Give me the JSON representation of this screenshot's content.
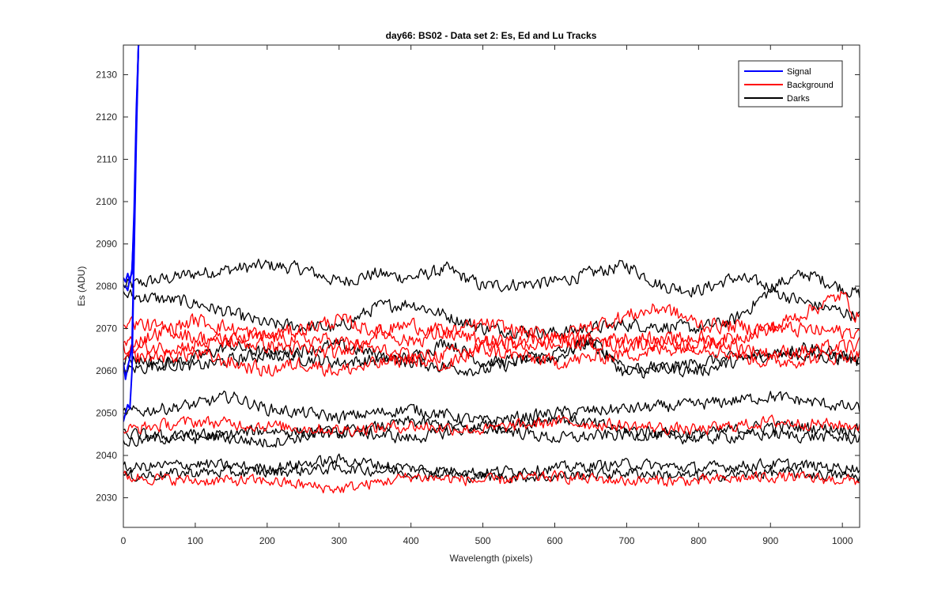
{
  "chart_data": {
    "type": "line",
    "title": "day66: BS02 - Data set 2: Es, Ed and Lu Tracks",
    "xlabel": "Wavelength (pixels)",
    "ylabel": "Es (ADU)",
    "xlim": [
      0,
      1024
    ],
    "ylim": [
      2023,
      2137
    ],
    "x_ticks": [
      0,
      100,
      200,
      300,
      400,
      500,
      600,
      700,
      800,
      900,
      1000
    ],
    "y_ticks": [
      2030,
      2040,
      2050,
      2060,
      2070,
      2080,
      2090,
      2100,
      2110,
      2120,
      2130
    ],
    "grid": false,
    "legend_position": "top-right",
    "legend": [
      {
        "label": "Signal",
        "color": "#0000ff"
      },
      {
        "label": "Background",
        "color": "#ff0000"
      },
      {
        "label": "Darks",
        "color": "#000000"
      }
    ],
    "series": [
      {
        "group": "Signal",
        "color": "#0000ff",
        "x": [
          0,
          3,
          6,
          9,
          12,
          15,
          18,
          21
        ],
        "y": [
          2082,
          2081,
          2083,
          2081,
          2084,
          2095,
          2120,
          2137
        ]
      },
      {
        "group": "Signal",
        "color": "#0000ff",
        "x": [
          0,
          3,
          6,
          9,
          12,
          15,
          18,
          21
        ],
        "y": [
          2062,
          2058,
          2061,
          2063,
          2066,
          2090,
          2118,
          2137
        ]
      },
      {
        "group": "Signal",
        "color": "#0000ff",
        "x": [
          0,
          3,
          6,
          9,
          12,
          15,
          18,
          21
        ],
        "y": [
          2048,
          2050,
          2052,
          2051,
          2060,
          2088,
          2115,
          2137
        ]
      },
      {
        "group": "Signal",
        "color": "#0000ff",
        "x": [
          0,
          3,
          6,
          9,
          12,
          15,
          18,
          21
        ],
        "y": [
          2080,
          2080,
          2079,
          2082,
          2083,
          2098,
          2122,
          2137
        ]
      },
      {
        "group": "Darks",
        "color": "#000000",
        "amp": 1.4,
        "x": [
          0,
          100,
          200,
          250,
          300,
          350,
          400,
          450,
          500,
          600,
          700,
          750,
          800,
          850,
          900,
          950,
          1024
        ],
        "y": [
          2080,
          2083,
          2085,
          2084,
          2081,
          2083,
          2082,
          2084,
          2080,
          2081,
          2085,
          2080,
          2079,
          2082,
          2080,
          2083,
          2078
        ]
      },
      {
        "group": "Darks",
        "color": "#000000",
        "amp": 1.4,
        "x": [
          0,
          100,
          200,
          300,
          350,
          400,
          450,
          500,
          600,
          700,
          800,
          850,
          900,
          950,
          1024
        ],
        "y": [
          2078,
          2076,
          2071,
          2070,
          2075,
          2076,
          2073,
          2070,
          2069,
          2071,
          2070,
          2072,
          2079,
          2076,
          2073
        ]
      },
      {
        "group": "Darks",
        "color": "#000000",
        "amp": 1.4,
        "x": [
          0,
          100,
          150,
          200,
          300,
          400,
          450,
          500,
          600,
          650,
          700,
          800,
          900,
          1024
        ],
        "y": [
          2060,
          2063,
          2066,
          2064,
          2062,
          2063,
          2067,
          2062,
          2063,
          2067,
          2059,
          2062,
          2064,
          2063
        ]
      },
      {
        "group": "Darks",
        "color": "#000000",
        "amp": 1.4,
        "x": [
          0,
          100,
          200,
          300,
          400,
          500,
          600,
          650,
          700,
          800,
          900,
          950,
          1024
        ],
        "y": [
          2063,
          2061,
          2064,
          2066,
          2062,
          2060,
          2064,
          2067,
          2061,
          2060,
          2064,
          2066,
          2062
        ]
      },
      {
        "group": "Darks",
        "color": "#000000",
        "amp": 1.3,
        "x": [
          0,
          100,
          150,
          200,
          300,
          400,
          500,
          600,
          700,
          800,
          900,
          1024
        ],
        "y": [
          2050,
          2052,
          2054,
          2051,
          2049,
          2051,
          2048,
          2050,
          2051,
          2052,
          2054,
          2051
        ]
      },
      {
        "group": "Darks",
        "color": "#000000",
        "amp": 1.3,
        "x": [
          0,
          100,
          200,
          300,
          400,
          500,
          600,
          700,
          800,
          900,
          1024
        ],
        "y": [
          2045,
          2044,
          2046,
          2045,
          2048,
          2046,
          2049,
          2046,
          2045,
          2047,
          2046
        ]
      },
      {
        "group": "Darks",
        "color": "#000000",
        "amp": 1.3,
        "x": [
          0,
          100,
          200,
          300,
          400,
          500,
          600,
          700,
          800,
          900,
          1024
        ],
        "y": [
          2043,
          2045,
          2043,
          2046,
          2044,
          2047,
          2044,
          2045,
          2044,
          2045,
          2044
        ]
      },
      {
        "group": "Darks",
        "color": "#000000",
        "amp": 1.2,
        "x": [
          0,
          100,
          200,
          300,
          400,
          500,
          600,
          700,
          800,
          900,
          1024
        ],
        "y": [
          2037,
          2038,
          2037,
          2039,
          2037,
          2036,
          2037,
          2038,
          2037,
          2038,
          2037
        ]
      },
      {
        "group": "Darks",
        "color": "#000000",
        "amp": 1.2,
        "x": [
          0,
          100,
          200,
          300,
          400,
          500,
          600,
          700,
          800,
          900,
          1024
        ],
        "y": [
          2035,
          2036,
          2036,
          2037,
          2036,
          2035,
          2035,
          2036,
          2035,
          2036,
          2035
        ]
      },
      {
        "group": "Background",
        "color": "#ff0000",
        "amp": 1.6,
        "x": [
          0,
          100,
          150,
          200,
          300,
          400,
          500,
          600,
          700,
          750,
          800,
          900,
          1000,
          1024
        ],
        "y": [
          2066,
          2072,
          2070,
          2068,
          2072,
          2067,
          2071,
          2068,
          2073,
          2075,
          2071,
          2070,
          2078,
          2072
        ]
      },
      {
        "group": "Background",
        "color": "#ff0000",
        "amp": 1.6,
        "x": [
          0,
          100,
          200,
          300,
          350,
          400,
          500,
          600,
          700,
          800,
          900,
          1024
        ],
        "y": [
          2072,
          2068,
          2066,
          2064,
          2069,
          2071,
          2067,
          2066,
          2068,
          2066,
          2070,
          2069
        ]
      },
      {
        "group": "Background",
        "color": "#ff0000",
        "amp": 1.6,
        "x": [
          0,
          100,
          200,
          300,
          400,
          450,
          500,
          600,
          700,
          800,
          900,
          1024
        ],
        "y": [
          2065,
          2066,
          2068,
          2067,
          2063,
          2061,
          2066,
          2068,
          2066,
          2068,
          2064,
          2066
        ]
      },
      {
        "group": "Background",
        "color": "#ff0000",
        "amp": 1.6,
        "x": [
          0,
          100,
          200,
          250,
          300,
          400,
          500,
          600,
          700,
          800,
          900,
          1024
        ],
        "y": [
          2063,
          2064,
          2060,
          2062,
          2060,
          2063,
          2065,
          2062,
          2064,
          2066,
          2062,
          2064
        ]
      },
      {
        "group": "Background",
        "color": "#ff0000",
        "amp": 1.3,
        "x": [
          0,
          100,
          200,
          300,
          400,
          500,
          600,
          700,
          800,
          900,
          1024
        ],
        "y": [
          2046,
          2048,
          2047,
          2046,
          2047,
          2046,
          2048,
          2047,
          2046,
          2048,
          2047
        ]
      },
      {
        "group": "Background",
        "color": "#ff0000",
        "amp": 1.2,
        "x": [
          0,
          100,
          200,
          300,
          400,
          500,
          600,
          700,
          800,
          900,
          1024
        ],
        "y": [
          2035,
          2034,
          2034,
          2032,
          2035,
          2034,
          2035,
          2034,
          2034,
          2035,
          2034
        ]
      }
    ]
  }
}
